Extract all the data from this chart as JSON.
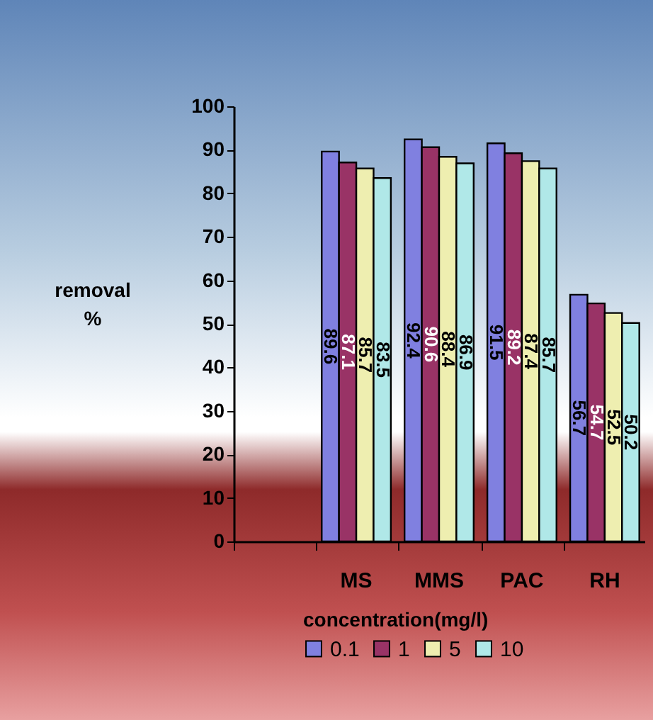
{
  "chart_data": {
    "type": "bar",
    "ylabel": "removal %",
    "legend_title": "concentration(mg/l)",
    "categories": [
      null,
      "MS",
      "MMS",
      "PAC",
      "RH"
    ],
    "series": [
      {
        "name": "0.1",
        "color": "#8080e0",
        "values": [
          null,
          89.6,
          92.4,
          91.5,
          56.7
        ],
        "value_labels": [
          null,
          "89.6",
          "92.4",
          "91.5",
          "56.7"
        ]
      },
      {
        "name": "1",
        "color": "#993366",
        "values": [
          null,
          87.1,
          90.6,
          89.2,
          54.7
        ],
        "value_labels": [
          null,
          "87.1",
          "90.6",
          "89.2",
          "54.7"
        ]
      },
      {
        "name": "5",
        "color": "#eeeeb0",
        "values": [
          null,
          85.7,
          88.4,
          87.4,
          52.5
        ],
        "value_labels": [
          null,
          "85.7",
          "88.4",
          "87.4",
          "52.5"
        ]
      },
      {
        "name": "10",
        "color": "#b0e8e8",
        "values": [
          null,
          83.5,
          86.9,
          85.7,
          50.2
        ],
        "value_labels": [
          null,
          "83.5",
          "86.9",
          "85.7",
          "50.2"
        ]
      }
    ],
    "ylim": [
      0,
      100
    ],
    "yticks": [
      0,
      10,
      20,
      30,
      40,
      50,
      60,
      70,
      80,
      90,
      100
    ],
    "legend": "bottom"
  }
}
